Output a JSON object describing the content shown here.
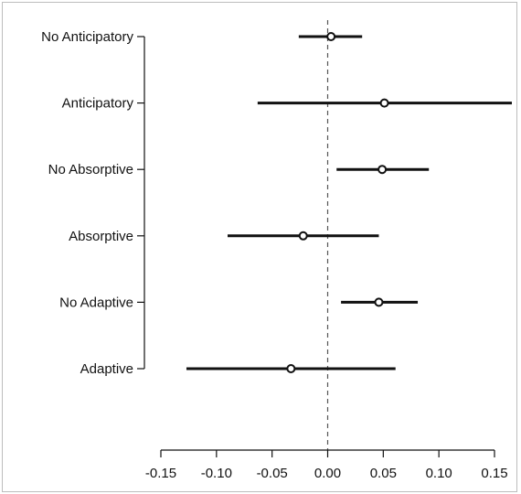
{
  "chart_data": {
    "type": "forest",
    "title": "",
    "xlabel": "",
    "ylabel": "",
    "xlim": [
      -0.15,
      0.15
    ],
    "x_ticks": [
      "-0.15",
      "-0.10",
      "-0.05",
      "0.00",
      "0.05",
      "0.10",
      "0.15"
    ],
    "reference_line": 0,
    "rows": [
      {
        "label": "No Anticipatory",
        "estimate": 0.003,
        "lower": -0.026,
        "upper": 0.031
      },
      {
        "label": "Anticipatory",
        "estimate": 0.051,
        "lower": -0.063,
        "upper": 0.166
      },
      {
        "label": "No Absorptive",
        "estimate": 0.049,
        "lower": 0.008,
        "upper": 0.091
      },
      {
        "label": "Absorptive",
        "estimate": -0.022,
        "lower": -0.09,
        "upper": 0.046
      },
      {
        "label": "No Adaptive",
        "estimate": 0.046,
        "lower": 0.012,
        "upper": 0.081
      },
      {
        "label": "Adaptive",
        "estimate": -0.033,
        "lower": -0.127,
        "upper": 0.061
      }
    ]
  }
}
